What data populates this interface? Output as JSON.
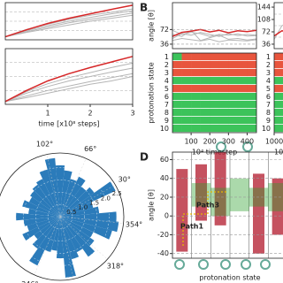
{
  "chart_data": [
    {
      "type": "line",
      "x": [
        0,
        0.5,
        1,
        1.5,
        2,
        2.5,
        3
      ],
      "xlim": [
        0,
        3
      ],
      "ylim": [
        0,
        1
      ],
      "series": [
        {
          "color": "#b5b5b5",
          "values": [
            0.08,
            0.25,
            0.38,
            0.5,
            0.6,
            0.7,
            0.78
          ]
        },
        {
          "color": "#b5b5b5",
          "values": [
            0.08,
            0.22,
            0.34,
            0.46,
            0.55,
            0.63,
            0.72
          ]
        },
        {
          "color": "#b5b5b5",
          "values": [
            0.08,
            0.28,
            0.42,
            0.55,
            0.66,
            0.74,
            0.83
          ]
        },
        {
          "color": "#b5b5b5",
          "values": [
            0.08,
            0.2,
            0.3,
            0.4,
            0.5,
            0.58,
            0.66
          ]
        },
        {
          "color": "#d62728",
          "values": [
            0.08,
            0.27,
            0.44,
            0.58,
            0.7,
            0.82,
            0.93
          ]
        }
      ]
    },
    {
      "type": "line",
      "x": [
        0,
        0.5,
        1,
        1.5,
        2,
        2.5,
        3
      ],
      "xlim": [
        0,
        3
      ],
      "ylim": [
        0,
        1
      ],
      "xticks": [
        1,
        2,
        3
      ],
      "xlabel": "time [x10⁸ steps]",
      "series": [
        {
          "color": "#b5b5b5",
          "values": [
            0.05,
            0.2,
            0.32,
            0.42,
            0.5,
            0.58,
            0.65
          ]
        },
        {
          "color": "#b5b5b5",
          "values": [
            0.05,
            0.15,
            0.25,
            0.33,
            0.41,
            0.48,
            0.55
          ]
        },
        {
          "color": "#b5b5b5",
          "values": [
            0.05,
            0.23,
            0.37,
            0.48,
            0.57,
            0.66,
            0.74
          ]
        },
        {
          "color": "#b5b5b5",
          "values": [
            0.05,
            0.12,
            0.2,
            0.28,
            0.36,
            0.42,
            0.5
          ]
        },
        {
          "color": "#d62728",
          "values": [
            0.05,
            0.25,
            0.42,
            0.55,
            0.66,
            0.76,
            0.86
          ]
        }
      ]
    },
    {
      "type": "polar-bar",
      "color": "#2b7bba",
      "rlim": [
        0,
        2.6
      ],
      "rticks": [
        0.5,
        {
          "value": 1,
          "label": "1.0"
        },
        1.5,
        {
          "value": 2,
          "label": "2.0"
        },
        2.5
      ],
      "theta_ticks": [
        {
          "value": 102,
          "label": "102°"
        },
        {
          "value": 66,
          "label": "66°"
        },
        {
          "value": 30,
          "label": "30°"
        },
        {
          "value": 354,
          "label": "354°"
        },
        {
          "value": 318,
          "label": "318°"
        },
        {
          "value": 282,
          "label": "282°"
        },
        {
          "value": 246,
          "label": "246°"
        }
      ],
      "theta": [
        0,
        10,
        20,
        30,
        40,
        50,
        60,
        70,
        80,
        90,
        100,
        110,
        120,
        130,
        140,
        150,
        160,
        170,
        180,
        190,
        200,
        210,
        220,
        230,
        240,
        250,
        260,
        270,
        280,
        290,
        300,
        310,
        320,
        330,
        340,
        350
      ],
      "values": [
        2.3,
        1.6,
        1.4,
        2.5,
        1.7,
        1.5,
        1.8,
        1.6,
        1.9,
        2.1,
        2.4,
        2.0,
        1.7,
        1.6,
        1.5,
        1.4,
        1.6,
        1.3,
        1.8,
        1.5,
        1.4,
        1.7,
        1.3,
        1.6,
        2.2,
        1.5,
        1.4,
        1.7,
        2.5,
        1.8,
        1.6,
        2.0,
        1.7,
        1.5,
        2.2,
        2.4
      ]
    },
    {
      "type": "line",
      "panel_label": "B",
      "ylabel": "angle [θ]",
      "x": [
        0,
        50,
        100,
        150,
        200,
        250,
        300,
        350,
        400,
        450
      ],
      "xlim": [
        0,
        450
      ],
      "ylim": [
        25,
        138
      ],
      "yticks": [
        36,
        72
      ],
      "grid": true,
      "series": [
        {
          "color": "#b5b5b5",
          "values": [
            60,
            55,
            70,
            45,
            52,
            58,
            48,
            50,
            46,
            49
          ]
        },
        {
          "color": "#b5b5b5",
          "values": [
            50,
            62,
            58,
            65,
            60,
            55,
            62,
            57,
            60,
            58
          ]
        },
        {
          "color": "#b5b5b5",
          "values": [
            45,
            50,
            47,
            44,
            48,
            42,
            46,
            45,
            44,
            47
          ]
        },
        {
          "color": "#b5b5b5",
          "values": [
            70,
            60,
            65,
            62,
            55,
            60,
            58,
            61,
            56,
            57
          ]
        },
        {
          "color": "#d62728",
          "values": [
            55,
            65,
            68,
            72,
            66,
            70,
            64,
            69,
            67,
            70
          ]
        }
      ]
    },
    {
      "type": "heatmap",
      "ylabel": "protonation state",
      "xlabel": "10⁴ timestep",
      "colors": [
        "#3cc35a",
        "#e8553d"
      ],
      "categories": [
        "1",
        "2",
        "3",
        "4",
        "5",
        "6",
        "7",
        "8",
        "9",
        "10"
      ],
      "bins": [
        0,
        50,
        100,
        150,
        200,
        250,
        300,
        350,
        400,
        450
      ],
      "xlim": [
        0,
        450
      ],
      "xticks": [
        100,
        200,
        300,
        400
      ],
      "values": [
        [
          0,
          1,
          1,
          1,
          1,
          1,
          1,
          1,
          1
        ],
        [
          1,
          1,
          1,
          1,
          1,
          1,
          1,
          1,
          1
        ],
        [
          1,
          1,
          1,
          1,
          1,
          1,
          1,
          1,
          1
        ],
        [
          0,
          0,
          0,
          0,
          0,
          0,
          0,
          0,
          0
        ],
        [
          1,
          1,
          1,
          1,
          1,
          1,
          1,
          1,
          1
        ],
        [
          0,
          0,
          0,
          0,
          0,
          0,
          0,
          0,
          0
        ],
        [
          0,
          0,
          0,
          0,
          0,
          0,
          0,
          0,
          0
        ],
        [
          0,
          0,
          0,
          0,
          0,
          0,
          0,
          0,
          0
        ],
        [
          0,
          0,
          0,
          0,
          0,
          0,
          0,
          0,
          0
        ],
        [
          0,
          0,
          0,
          0,
          0,
          0,
          0,
          0,
          0
        ]
      ]
    },
    {
      "type": "line",
      "x": [
        1000,
        2000,
        3000,
        4000,
        5000
      ],
      "xlim": [
        1000,
        5000
      ],
      "ylim": [
        23,
        157
      ],
      "yticks": [
        36,
        72,
        108,
        144
      ],
      "series": [
        {
          "color": "#b5b5b5",
          "values": [
            50,
            90,
            100,
            70,
            60
          ]
        },
        {
          "color": "#d62728",
          "values": [
            60,
            75,
            70,
            80,
            78
          ]
        }
      ]
    },
    {
      "type": "heatmap",
      "xlabel": "10⁴ timestep",
      "colors": [
        "#3cc35a",
        "#e8553d"
      ],
      "categories": [
        "1",
        "2",
        "3",
        "4",
        "5",
        "6",
        "7",
        "8",
        "9",
        "10"
      ],
      "bins": [
        1000,
        2000,
        3000,
        4000,
        5000
      ],
      "xlim": [
        1000,
        5000
      ],
      "xticks": [
        1000
      ],
      "values": [
        [
          1,
          1,
          1,
          1
        ],
        [
          1,
          1,
          1,
          1
        ],
        [
          1,
          1,
          1,
          1
        ],
        [
          0,
          0,
          0,
          0
        ],
        [
          1,
          1,
          1,
          1
        ],
        [
          0,
          0,
          0,
          0
        ],
        [
          0,
          0,
          0,
          0
        ],
        [
          0,
          0,
          0,
          0
        ],
        [
          0,
          0,
          0,
          0
        ],
        [
          0,
          0,
          0,
          0
        ]
      ]
    },
    {
      "type": "range",
      "panel_label": "D",
      "ylabel": "angle [θ]",
      "xlabel": "protonation state",
      "ylim": [
        -45,
        68
      ],
      "yticks": [
        60,
        40,
        20,
        0,
        -20,
        -40
      ],
      "grid": true,
      "categories": [
        null,
        null,
        null,
        null,
        null,
        null
      ],
      "series": [
        {
          "color": "#b2182b",
          "low": [
            -38,
            -5,
            -10,
            null,
            -40,
            -20
          ],
          "high": [
            50,
            55,
            68,
            null,
            45,
            40
          ]
        },
        {
          "color": "#2ca02c",
          "low": [
            null,
            10,
            0,
            5,
            10,
            5
          ],
          "high": [
            null,
            35,
            30,
            40,
            30,
            35
          ]
        }
      ],
      "annotations": [
        "Path1",
        "Path3"
      ]
    }
  ]
}
